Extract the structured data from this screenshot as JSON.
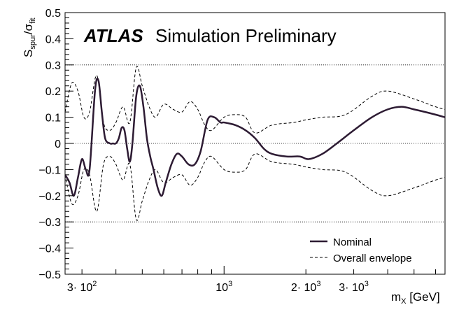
{
  "chart_data": {
    "type": "line",
    "title": "Simulation Preliminary",
    "experiment_label": "ATLAS",
    "xlabel": {
      "base": "m",
      "sub": "X",
      "unit": " [GeV]"
    },
    "ylabel": {
      "main": "S",
      "sub1": "spur",
      "mid": "/σ",
      "sub2": "fit"
    },
    "x_scale": "log",
    "xlim": [
      260,
      6500
    ],
    "ylim": [
      -0.5,
      0.5
    ],
    "x_ticks": [
      {
        "value": 300,
        "mant": "3",
        "exp": "2"
      },
      {
        "value": 1000,
        "mant": "",
        "exp": "3"
      },
      {
        "value": 2000,
        "mant": "2",
        "exp": "3"
      },
      {
        "value": 3000,
        "mant": "3",
        "exp": "3"
      }
    ],
    "y_ticks": [
      -0.5,
      -0.4,
      -0.3,
      -0.2,
      -0.1,
      0,
      0.1,
      0.2,
      0.3,
      0.4,
      0.5
    ],
    "y_tick_labels": [
      "−0.5",
      "−0.4",
      "−0.3",
      "−0.2",
      "−0.1",
      "0",
      "0.1",
      "0.2",
      "0.3",
      "0.4",
      "0.5"
    ],
    "reference_lines": [
      -0.3,
      0,
      0.3
    ],
    "legend_position": "bottom-right",
    "series": [
      {
        "name": "Nominal",
        "style": "solid",
        "color": "#2d1b33",
        "x": [
          260,
          270,
          280,
          290,
          300,
          310,
          320,
          335,
          345,
          355,
          365,
          380,
          390,
          400,
          410,
          420,
          430,
          440,
          450,
          460,
          475,
          490,
          505,
          520,
          535,
          550,
          570,
          590,
          610,
          640,
          670,
          700,
          740,
          780,
          820,
          870,
          920,
          970,
          1000,
          1100,
          1200,
          1300,
          1400,
          1500,
          1700,
          1900,
          2050,
          2300,
          2600,
          3000,
          3500,
          4000,
          4500,
          5000,
          5500,
          6000,
          6500
        ],
        "y": [
          -0.12,
          -0.15,
          -0.2,
          -0.13,
          -0.06,
          -0.1,
          -0.1,
          0.2,
          0.24,
          0.12,
          0.02,
          0.0,
          0.0,
          0.0,
          0.02,
          0.06,
          0.05,
          -0.02,
          -0.07,
          0.0,
          0.18,
          0.22,
          0.14,
          0.02,
          -0.05,
          -0.1,
          -0.17,
          -0.2,
          -0.15,
          -0.08,
          -0.04,
          -0.05,
          -0.08,
          -0.08,
          -0.03,
          0.09,
          0.1,
          0.08,
          0.08,
          0.07,
          0.05,
          0.02,
          -0.02,
          -0.04,
          -0.05,
          -0.05,
          -0.06,
          -0.04,
          0.0,
          0.05,
          0.1,
          0.13,
          0.14,
          0.13,
          0.12,
          0.11,
          0.1
        ]
      },
      {
        "name": "Overall envelope",
        "style": "dashed",
        "color": "#000000",
        "x": [
          260,
          275,
          290,
          305,
          320,
          340,
          360,
          380,
          400,
          425,
          450,
          475,
          500,
          530,
          560,
          600,
          650,
          700,
          750,
          800,
          850,
          900,
          1000,
          1100,
          1200,
          1300,
          1500,
          1800,
          2000,
          2300,
          2800,
          3500,
          4000,
          5000,
          6000,
          6500
        ],
        "y": [
          0.12,
          0.23,
          0.2,
          0.1,
          0.12,
          0.26,
          0.08,
          0.05,
          0.08,
          0.14,
          0.08,
          0.29,
          0.22,
          0.14,
          0.1,
          0.15,
          0.13,
          0.12,
          0.16,
          0.13,
          0.07,
          0.05,
          0.1,
          0.11,
          0.1,
          0.04,
          0.07,
          0.08,
          0.09,
          0.1,
          0.11,
          0.18,
          0.2,
          0.17,
          0.14,
          0.13
        ],
        "y_lower": [
          -0.12,
          -0.23,
          -0.2,
          -0.1,
          -0.12,
          -0.26,
          -0.08,
          -0.05,
          -0.08,
          -0.14,
          -0.08,
          -0.29,
          -0.22,
          -0.14,
          -0.1,
          -0.15,
          -0.13,
          -0.12,
          -0.16,
          -0.13,
          -0.07,
          -0.05,
          -0.1,
          -0.11,
          -0.1,
          -0.04,
          -0.07,
          -0.08,
          -0.09,
          -0.1,
          -0.11,
          -0.18,
          -0.2,
          -0.17,
          -0.14,
          -0.13
        ]
      }
    ]
  }
}
